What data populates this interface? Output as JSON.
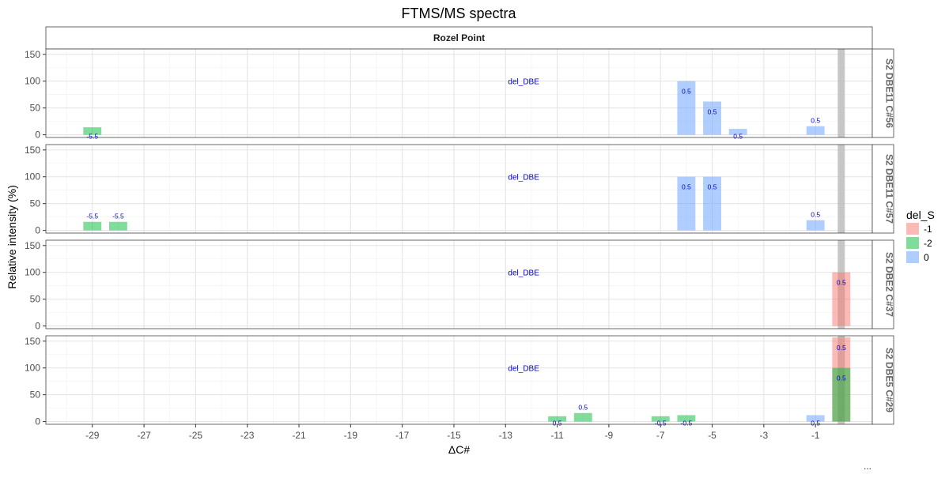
{
  "chart_data": {
    "type": "bar",
    "title": "FTMS/MS spectra",
    "xlabel": "ΔC#",
    "ylabel": "Relative intensity (%)",
    "facet_column_label": "Rozel Point",
    "xlim": [
      -30.8,
      1.2
    ],
    "ylim": [
      -5,
      160
    ],
    "x_ticks": [
      -29,
      -27,
      -25,
      -23,
      -21,
      -19,
      -17,
      -15,
      -13,
      -11,
      -9,
      -7,
      -5,
      -3,
      -1
    ],
    "y_ticks": [
      0,
      50,
      100,
      150
    ],
    "grid": true,
    "reference_line_x": 0,
    "panel_annotation": "del_DBE",
    "legend": {
      "title": "del_S",
      "placement": "right",
      "entries": [
        {
          "label": "-1",
          "color": "#F8766D"
        },
        {
          "label": "-2",
          "color": "#00BA38"
        },
        {
          "label": "0",
          "color": "#619CFF"
        }
      ]
    },
    "panels": [
      {
        "label": "S2 DBE11 C#56",
        "bars": [
          {
            "x": -29,
            "y": 14,
            "group": "-2",
            "label": "-5.5"
          },
          {
            "x": -6,
            "y": 100,
            "group": "0",
            "label": "0.5"
          },
          {
            "x": -5,
            "y": 62,
            "group": "0",
            "label": "0.5"
          },
          {
            "x": -4,
            "y": 11,
            "group": "0",
            "label": "0.5"
          },
          {
            "x": -1,
            "y": 16,
            "group": "0",
            "label": "0.5"
          }
        ]
      },
      {
        "label": "S2 DBE11 C#57",
        "bars": [
          {
            "x": -29,
            "y": 16,
            "group": "-2",
            "label": "-5.5"
          },
          {
            "x": -28,
            "y": 16,
            "group": "-2",
            "label": "-5.5"
          },
          {
            "x": -6,
            "y": 100,
            "group": "0",
            "label": "0.5"
          },
          {
            "x": -5,
            "y": 100,
            "group": "0",
            "label": "0.5"
          },
          {
            "x": -1,
            "y": 19,
            "group": "0",
            "label": "0.5"
          }
        ]
      },
      {
        "label": "S2 DBE2 C#37",
        "bars": [
          {
            "x": 0,
            "y": 100,
            "group": "-1",
            "label": "0.5"
          }
        ]
      },
      {
        "label": "S2 DBE5 C#29",
        "bars": [
          {
            "x": -11,
            "y": 10,
            "group": "-2",
            "label": "0.5"
          },
          {
            "x": -10,
            "y": 16,
            "group": "-2",
            "label": "0.5"
          },
          {
            "x": -7,
            "y": 10,
            "group": "-2",
            "label": "-0.5"
          },
          {
            "x": -6,
            "y": 12,
            "group": "-2",
            "label": "-0.5"
          },
          {
            "x": -1,
            "y": 12,
            "group": "0",
            "label": "0.5"
          },
          {
            "x": 0,
            "y": 157,
            "group": "-1",
            "label": "0.5"
          },
          {
            "x": 0,
            "y": 100,
            "group": "-2",
            "label": "0.5"
          }
        ]
      }
    ],
    "footer_text": "..."
  }
}
